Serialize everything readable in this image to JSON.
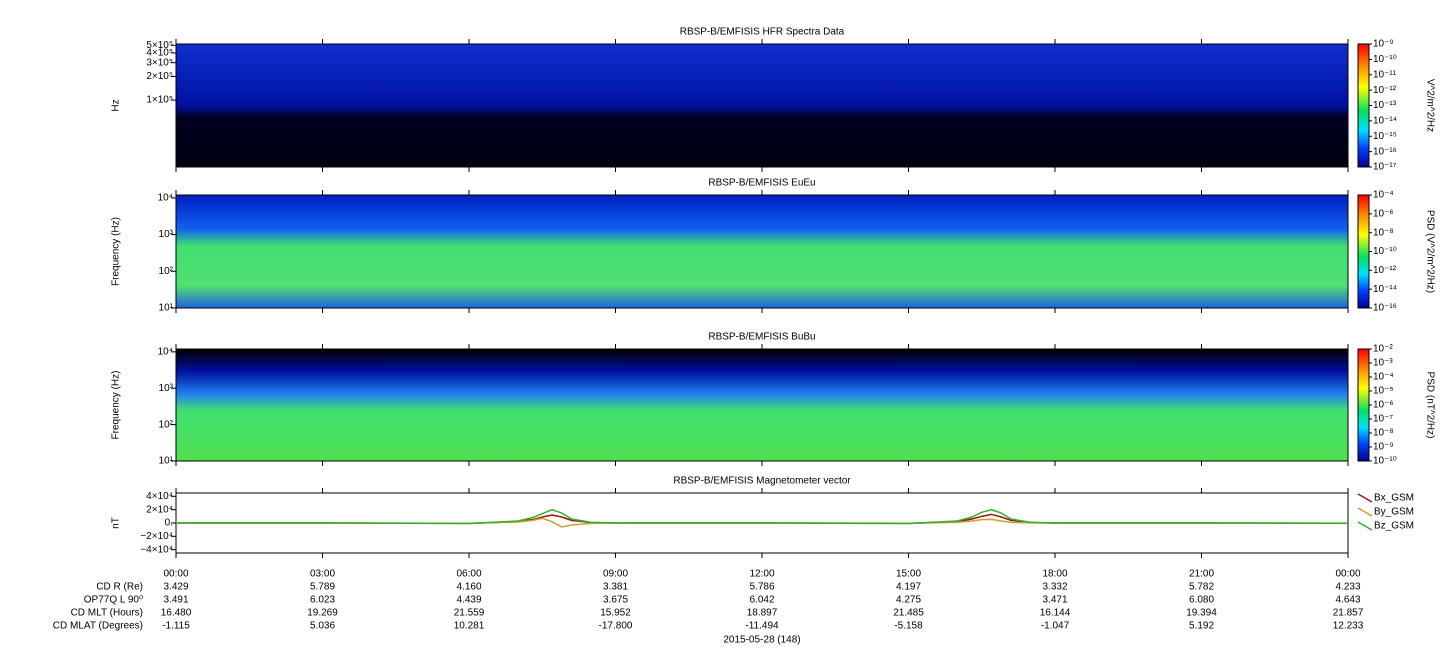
{
  "chart_data": [
    {
      "type": "spectrogram",
      "title": "RBSP-B/EMFISIS  HFR Spectra Data",
      "ylabel": "Hz",
      "log_y": true,
      "ylim": [
        14000,
        520000
      ],
      "yticks": [
        {
          "value": 100000,
          "label": "1×10⁵"
        },
        {
          "value": 200000,
          "label": "2×10⁵"
        },
        {
          "value": 300000,
          "label": "3×10⁵"
        },
        {
          "value": 400000,
          "label": "4×10⁵"
        },
        {
          "value": 500000,
          "label": "5×10⁵"
        }
      ],
      "colorbar_label": "V^2/m^2/Hz",
      "zlim": [
        1e-17,
        1e-09
      ],
      "zticks": [
        {
          "value": 1e-09,
          "label": "10⁻⁹"
        },
        {
          "value": 1e-10,
          "label": "10⁻¹⁰"
        },
        {
          "value": 1e-11,
          "label": "10⁻¹¹"
        },
        {
          "value": 1e-12,
          "label": "10⁻¹²"
        },
        {
          "value": 1e-13,
          "label": "10⁻¹³"
        },
        {
          "value": 1e-14,
          "label": "10⁻¹⁴"
        },
        {
          "value": 1e-15,
          "label": "10⁻¹⁵"
        },
        {
          "value": 1e-16,
          "label": "10⁻¹⁶"
        },
        {
          "value": 1e-17,
          "label": "10⁻¹⁷"
        }
      ]
    },
    {
      "type": "spectrogram",
      "title": "RBSP-B/EMFISIS  EuEu",
      "ylabel": "Frequency (Hz)",
      "log_y": true,
      "ylim": [
        10,
        12000
      ],
      "yticks": [
        {
          "value": 10,
          "label": "10¹"
        },
        {
          "value": 100,
          "label": "10²"
        },
        {
          "value": 1000,
          "label": "10³"
        },
        {
          "value": 10000,
          "label": "10⁴"
        }
      ],
      "colorbar_label": "PSD (V^2/m^2/Hz)",
      "zlim": [
        1e-16,
        0.0001
      ],
      "zticks": [
        {
          "value": 0.0001,
          "label": "10⁻⁴"
        },
        {
          "value": 1e-06,
          "label": "10⁻⁶"
        },
        {
          "value": 1e-08,
          "label": "10⁻⁸"
        },
        {
          "value": 1e-10,
          "label": "10⁻¹⁰"
        },
        {
          "value": 1e-12,
          "label": "10⁻¹²"
        },
        {
          "value": 1e-14,
          "label": "10⁻¹⁴"
        },
        {
          "value": 1e-16,
          "label": "10⁻¹⁶"
        }
      ]
    },
    {
      "type": "spectrogram",
      "title": "RBSP-B/EMFISIS  BuBu",
      "ylabel": "Frequency (Hz)",
      "log_y": true,
      "ylim": [
        10,
        12000
      ],
      "yticks": [
        {
          "value": 10,
          "label": "10¹"
        },
        {
          "value": 100,
          "label": "10²"
        },
        {
          "value": 1000,
          "label": "10³"
        },
        {
          "value": 10000,
          "label": "10⁴"
        }
      ],
      "colorbar_label": "PSD (nT^2/Hz)",
      "zlim": [
        1e-10,
        0.01
      ],
      "zticks": [
        {
          "value": 0.01,
          "label": "10⁻²"
        },
        {
          "value": 0.001,
          "label": "10⁻³"
        },
        {
          "value": 0.0001,
          "label": "10⁻⁴"
        },
        {
          "value": 1e-05,
          "label": "10⁻⁵"
        },
        {
          "value": 1e-06,
          "label": "10⁻⁶"
        },
        {
          "value": 1e-07,
          "label": "10⁻⁷"
        },
        {
          "value": 1e-08,
          "label": "10⁻⁸"
        },
        {
          "value": 1e-09,
          "label": "10⁻⁹"
        },
        {
          "value": 1e-10,
          "label": "10⁻¹⁰"
        }
      ]
    },
    {
      "type": "line",
      "title": "RBSP-B/EMFISIS  Magnetometer vector",
      "ylabel": "nT",
      "log_y": false,
      "ylim": [
        -45000,
        45000
      ],
      "yticks": [
        {
          "value": -40000,
          "label": "−4×10⁴"
        },
        {
          "value": -20000,
          "label": "−2×10⁴"
        },
        {
          "value": 0,
          "label": "0."
        },
        {
          "value": 20000,
          "label": "2×10⁴"
        },
        {
          "value": 40000,
          "label": "4×10⁴"
        }
      ],
      "xlim": [
        0,
        24
      ],
      "xticks": [
        {
          "value": 0,
          "label": "00:00"
        },
        {
          "value": 3,
          "label": "03:00"
        },
        {
          "value": 6,
          "label": "06:00"
        },
        {
          "value": 9,
          "label": "09:00"
        },
        {
          "value": 12,
          "label": "12:00"
        },
        {
          "value": 15,
          "label": "15:00"
        },
        {
          "value": 18,
          "label": "18:00"
        },
        {
          "value": 21,
          "label": "21:00"
        },
        {
          "value": 24,
          "label": "00:00"
        }
      ],
      "x": [
        0,
        3,
        6,
        7,
        7.3,
        7.5,
        7.7,
        7.9,
        8.1,
        8.5,
        9,
        12,
        15,
        16,
        16.3,
        16.5,
        16.7,
        16.9,
        17.1,
        17.5,
        18,
        21,
        24
      ],
      "series": [
        {
          "name": "Bx_GSM",
          "color": "#a01010",
          "values": [
            0,
            0,
            -500,
            2000,
            5000,
            9000,
            12000,
            9000,
            4000,
            800,
            0,
            0,
            -500,
            2000,
            6000,
            10000,
            13000,
            9000,
            4000,
            800,
            0,
            0,
            -300
          ]
        },
        {
          "name": "By_GSM",
          "color": "#c8a030",
          "values": [
            0,
            0,
            -300,
            1500,
            4000,
            7000,
            2000,
            -6000,
            -3000,
            -500,
            0,
            0,
            -300,
            1000,
            3000,
            5000,
            5500,
            3000,
            1000,
            200,
            0,
            0,
            -200
          ]
        },
        {
          "name": "Bz_GSM",
          "color": "#30b030",
          "values": [
            0,
            0,
            -800,
            3000,
            8000,
            14000,
            20000,
            15000,
            6000,
            1000,
            0,
            0,
            -800,
            3000,
            9000,
            16000,
            20000,
            15000,
            6000,
            1000,
            0,
            0,
            -500
          ]
        }
      ]
    }
  ],
  "ephemeris": {
    "rows": [
      {
        "label": "CD R (Re)",
        "values": [
          "3.429",
          "5.789",
          "4.160",
          "3.381",
          "5.786",
          "4.197",
          "3.332",
          "5.782",
          "4.233"
        ]
      },
      {
        "label": "OP77Q L 90⁰",
        "values": [
          "3.491",
          "6.023",
          "4.439",
          "3.675",
          "6.042",
          "4.275",
          "3.471",
          "6.080",
          "4.643"
        ]
      },
      {
        "label": "CD MLT (Hours)",
        "values": [
          "16.480",
          "19.269",
          "21.559",
          "15.952",
          "18.897",
          "21.485",
          "16.144",
          "19.394",
          "21.857"
        ]
      },
      {
        "label": "CD MLAT (Degrees)",
        "values": [
          "-1.115",
          "5.036",
          "10.281",
          "-17.800",
          "-11.494",
          "-5.158",
          "-1.047",
          "5.192",
          "12.233"
        ]
      }
    ],
    "date": "2015-05-28 (148)"
  }
}
